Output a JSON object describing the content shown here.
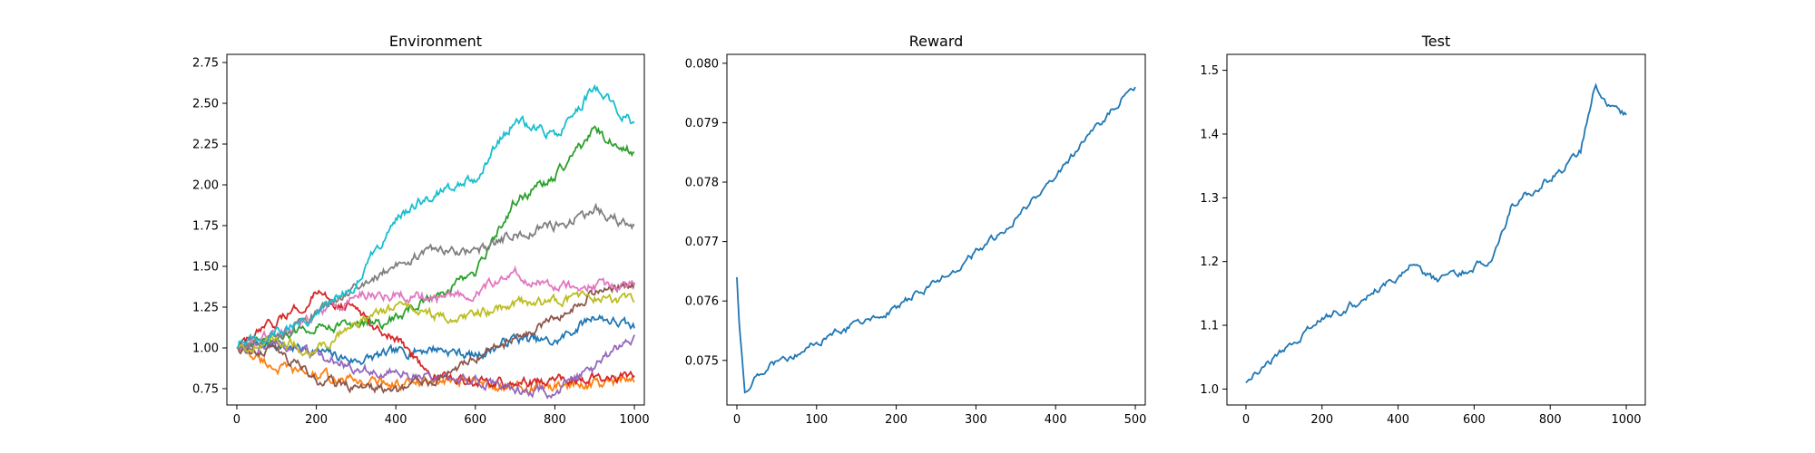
{
  "chart_data": [
    {
      "type": "line",
      "title": "Environment",
      "xlabel": "",
      "ylabel": "",
      "xlim": [
        -25,
        1025
      ],
      "ylim": [
        0.65,
        2.8
      ],
      "xticks": [
        0,
        200,
        400,
        600,
        800,
        1000
      ],
      "yticks": [
        0.75,
        1.0,
        1.25,
        1.5,
        1.75,
        2.0,
        2.25,
        2.5,
        2.75
      ],
      "ytick_decimals": 2,
      "grid": false,
      "legend": "none",
      "x": [
        0,
        100,
        200,
        300,
        400,
        500,
        600,
        700,
        800,
        900,
        1000
      ],
      "series": [
        {
          "color": "#1f77b4",
          "values": [
            1.0,
            1.02,
            0.98,
            0.92,
            0.97,
            1.0,
            0.95,
            1.06,
            1.03,
            1.2,
            1.12
          ]
        },
        {
          "color": "#ff7f0e",
          "values": [
            1.0,
            0.88,
            0.83,
            0.8,
            0.78,
            0.78,
            0.79,
            0.75,
            0.76,
            0.78,
            0.79
          ]
        },
        {
          "color": "#2ca02c",
          "values": [
            1.0,
            1.05,
            1.15,
            1.13,
            1.18,
            1.33,
            1.45,
            1.9,
            2.05,
            2.33,
            2.2
          ]
        },
        {
          "color": "#d62728",
          "values": [
            1.0,
            1.15,
            1.33,
            1.23,
            1.05,
            0.83,
            0.78,
            0.78,
            0.8,
            0.82,
            0.83
          ]
        },
        {
          "color": "#9467bd",
          "values": [
            1.0,
            1.02,
            0.95,
            0.88,
            0.84,
            0.82,
            0.8,
            0.75,
            0.73,
            0.88,
            1.08
          ]
        },
        {
          "color": "#8c564b",
          "values": [
            1.0,
            1.0,
            0.8,
            0.77,
            0.73,
            0.82,
            0.95,
            1.05,
            1.18,
            1.35,
            1.4
          ]
        },
        {
          "color": "#e377c2",
          "values": [
            1.0,
            1.1,
            1.2,
            1.33,
            1.33,
            1.3,
            1.35,
            1.45,
            1.38,
            1.38,
            1.38
          ]
        },
        {
          "color": "#7f7f7f",
          "values": [
            1.0,
            1.08,
            1.2,
            1.37,
            1.52,
            1.6,
            1.58,
            1.7,
            1.75,
            1.85,
            1.75
          ]
        },
        {
          "color": "#bcbd22",
          "values": [
            1.0,
            1.05,
            0.98,
            1.15,
            1.25,
            1.2,
            1.2,
            1.27,
            1.28,
            1.32,
            1.28
          ]
        },
        {
          "color": "#17becf",
          "values": [
            1.0,
            1.1,
            1.2,
            1.4,
            1.8,
            1.95,
            2.05,
            2.4,
            2.3,
            2.6,
            2.38
          ]
        }
      ]
    },
    {
      "type": "line",
      "title": "Reward",
      "xlabel": "",
      "ylabel": "",
      "xlim": [
        -12.5,
        512.5
      ],
      "ylim": [
        0.07425,
        0.08015
      ],
      "xticks": [
        0,
        100,
        200,
        300,
        400,
        500
      ],
      "yticks": [
        0.075,
        0.076,
        0.077,
        0.078,
        0.079,
        0.08
      ],
      "ytick_decimals": 3,
      "grid": false,
      "legend": "none",
      "x": [
        0,
        3,
        6,
        10,
        20,
        50,
        100,
        150,
        200,
        250,
        300,
        350,
        400,
        450,
        490,
        500
      ],
      "series": [
        {
          "color": "#1f77b4",
          "values": [
            0.0764,
            0.0756,
            0.0752,
            0.0745,
            0.0747,
            0.075,
            0.0753,
            0.0756,
            0.0759,
            0.0763,
            0.0768,
            0.0774,
            0.0781,
            0.0789,
            0.0795,
            0.0796
          ]
        }
      ]
    },
    {
      "type": "line",
      "title": "Test",
      "xlabel": "",
      "ylabel": "",
      "xlim": [
        -50,
        1050
      ],
      "ylim": [
        0.975,
        1.525
      ],
      "xticks": [
        0,
        200,
        400,
        600,
        800,
        1000
      ],
      "yticks": [
        1.0,
        1.1,
        1.2,
        1.3,
        1.4,
        1.5
      ],
      "ytick_decimals": 1,
      "grid": false,
      "legend": "none",
      "x": [
        0,
        50,
        100,
        200,
        300,
        400,
        430,
        500,
        600,
        650,
        700,
        800,
        880,
        900,
        920,
        950,
        1000
      ],
      "series": [
        {
          "color": "#1f77b4",
          "values": [
            1.01,
            1.04,
            1.06,
            1.11,
            1.14,
            1.18,
            1.2,
            1.17,
            1.19,
            1.21,
            1.29,
            1.33,
            1.37,
            1.43,
            1.48,
            1.44,
            1.43
          ]
        }
      ]
    }
  ]
}
